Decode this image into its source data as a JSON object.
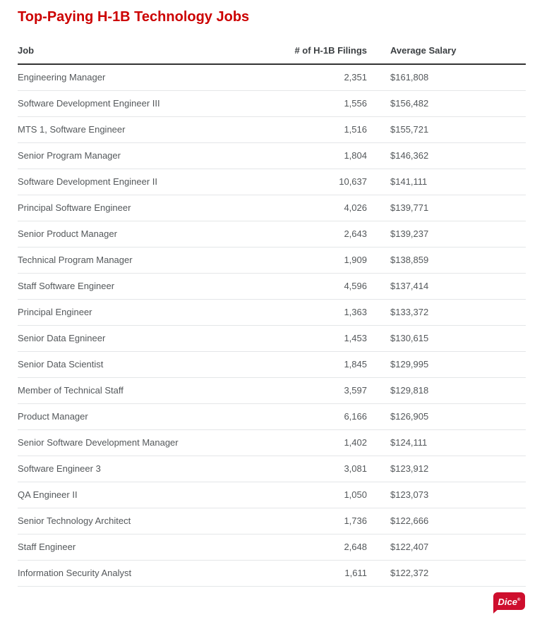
{
  "page": {
    "title": "Top-Paying H-1B Technology Jobs"
  },
  "table": {
    "columns": {
      "job": "Job",
      "filings": "# of H-1B Filings",
      "salary": "Average Salary"
    },
    "rows": [
      {
        "job": "Engineering Manager",
        "filings": "2,351",
        "salary": "$161,808"
      },
      {
        "job": "Software Development Engineer III",
        "filings": "1,556",
        "salary": "$156,482"
      },
      {
        "job": "MTS 1, Software Engineer",
        "filings": "1,516",
        "salary": "$155,721"
      },
      {
        "job": "Senior Program Manager",
        "filings": "1,804",
        "salary": "$146,362"
      },
      {
        "job": "Software Development Engineer II",
        "filings": "10,637",
        "salary": "$141,111"
      },
      {
        "job": "Principal Software Engineer",
        "filings": "4,026",
        "salary": "$139,771"
      },
      {
        "job": "Senior Product Manager",
        "filings": "2,643",
        "salary": "$139,237"
      },
      {
        "job": "Technical Program Manager",
        "filings": "1,909",
        "salary": "$138,859"
      },
      {
        "job": "Staff Software Engineer",
        "filings": "4,596",
        "salary": "$137,414"
      },
      {
        "job": "Principal Engineer",
        "filings": "1,363",
        "salary": "$133,372"
      },
      {
        "job": "Senior Data Egnineer",
        "filings": "1,453",
        "salary": "$130,615"
      },
      {
        "job": "Senior Data Scientist",
        "filings": "1,845",
        "salary": "$129,995"
      },
      {
        "job": "Member of Technical Staff",
        "filings": "3,597",
        "salary": "$129,818"
      },
      {
        "job": "Product Manager",
        "filings": "6,166",
        "salary": "$126,905"
      },
      {
        "job": "Senior Software Development Manager",
        "filings": "1,402",
        "salary": "$124,111"
      },
      {
        "job": "Software Engineer 3",
        "filings": "3,081",
        "salary": "$123,912"
      },
      {
        "job": "QA Engineer II",
        "filings": "1,050",
        "salary": "$123,073"
      },
      {
        "job": "Senior Technology Architect",
        "filings": "1,736",
        "salary": "$122,666"
      },
      {
        "job": "Staff Engineer",
        "filings": "2,648",
        "salary": "$122,407"
      },
      {
        "job": "Information Security Analyst",
        "filings": "1,611",
        "salary": "$122,372"
      }
    ]
  },
  "footer": {
    "logo_text": "Dice",
    "logo_reg": "®"
  },
  "colors": {
    "title_red": "#cc0000",
    "dice_red": "#ce0e2d",
    "header_text": "#3b3f42",
    "body_text": "#54585b",
    "header_border": "#333333",
    "row_border": "#e4e6e8",
    "background": "#ffffff"
  },
  "chart_data": {
    "type": "table",
    "title": "Top-Paying H-1B Technology Jobs",
    "columns": [
      "Job",
      "# of H-1B Filings",
      "Average Salary"
    ],
    "rows": [
      [
        "Engineering Manager",
        2351,
        161808
      ],
      [
        "Software Development Engineer III",
        1556,
        156482
      ],
      [
        "MTS 1, Software Engineer",
        1516,
        155721
      ],
      [
        "Senior Program Manager",
        1804,
        146362
      ],
      [
        "Software Development Engineer II",
        10637,
        141111
      ],
      [
        "Principal Software Engineer",
        4026,
        139771
      ],
      [
        "Senior Product Manager",
        2643,
        139237
      ],
      [
        "Technical Program Manager",
        1909,
        138859
      ],
      [
        "Staff Software Engineer",
        4596,
        137414
      ],
      [
        "Principal Engineer",
        1363,
        133372
      ],
      [
        "Senior Data Egnineer",
        1453,
        130615
      ],
      [
        "Senior Data Scientist",
        1845,
        129995
      ],
      [
        "Member of Technical Staff",
        3597,
        129818
      ],
      [
        "Product Manager",
        6166,
        126905
      ],
      [
        "Senior Software Development Manager",
        1402,
        124111
      ],
      [
        "Software Engineer 3",
        3081,
        123912
      ],
      [
        "QA Engineer II",
        1050,
        123073
      ],
      [
        "Senior Technology Architect",
        1736,
        122666
      ],
      [
        "Staff Engineer",
        2648,
        122407
      ],
      [
        "Information Security Analyst",
        1611,
        122372
      ]
    ]
  }
}
